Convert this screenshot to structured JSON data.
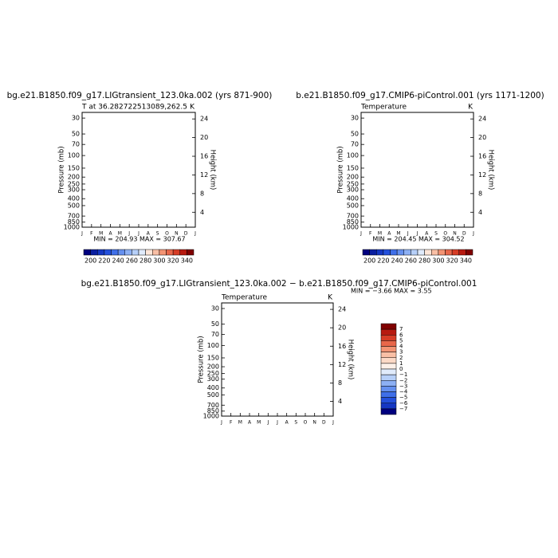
{
  "chart_data": [
    {
      "type": "contour",
      "title": "bg.e21.B1850.f09_g17.LIGtransient_123.0ka.002 (yrs 871-900)",
      "subtitle": "T at 36.282722513089,262.5",
      "units": "K",
      "ylabel": "Pressure (mb)",
      "y2label": "Height (km)",
      "categories": [
        "J",
        "F",
        "M",
        "A",
        "M",
        "J",
        "J",
        "A",
        "S",
        "O",
        "N",
        "D",
        "J"
      ],
      "ylim": [
        1000,
        25
      ],
      "log_scale_y": true,
      "yticks": [
        30,
        50,
        70,
        100,
        150,
        200,
        250,
        300,
        400,
        500,
        700,
        850,
        1000
      ],
      "y2lim": [
        0.8,
        25.4
      ],
      "y2ticks": [
        24,
        20,
        16,
        12,
        8,
        4
      ],
      "min_max": "MIN = 204.93 MAX = 307.67",
      "colorbar": {
        "orientation": "horizontal",
        "labels": [
          200,
          220,
          240,
          260,
          280,
          300,
          320,
          340
        ],
        "colors": [
          "#00007f",
          "#0a1fa0",
          "#1537c3",
          "#2450dc",
          "#3f6fe8",
          "#6590ef",
          "#8db0f4",
          "#b6cff8",
          "#e0ebfb",
          "#fde6d8",
          "#f9bfa5",
          "#f39474",
          "#e8674a",
          "#d63c26",
          "#b71a10",
          "#800000"
        ]
      }
    },
    {
      "type": "contour",
      "title": "b.e21.B1850.f09_g17.CMIP6-piControl.001 (yrs 1171-1200)",
      "subtitle": "Temperature",
      "units": "K",
      "ylabel": "Pressure (mb)",
      "y2label": "Height (km)",
      "categories": [
        "J",
        "F",
        "M",
        "A",
        "M",
        "J",
        "J",
        "A",
        "S",
        "O",
        "N",
        "D",
        "J"
      ],
      "ylim": [
        1000,
        25
      ],
      "log_scale_y": true,
      "yticks": [
        30,
        50,
        70,
        100,
        150,
        200,
        250,
        300,
        400,
        500,
        700,
        850,
        1000
      ],
      "y2lim": [
        0.8,
        25.4
      ],
      "y2ticks": [
        24,
        20,
        16,
        12,
        8,
        4
      ],
      "min_max": "MIN = 204.45 MAX = 304.52",
      "colorbar": {
        "orientation": "horizontal",
        "labels": [
          200,
          220,
          240,
          260,
          280,
          300,
          320,
          340
        ],
        "colors": [
          "#00007f",
          "#0a1fa0",
          "#1537c3",
          "#2450dc",
          "#3f6fe8",
          "#6590ef",
          "#8db0f4",
          "#b6cff8",
          "#e0ebfb",
          "#fde6d8",
          "#f9bfa5",
          "#f39474",
          "#e8674a",
          "#d63c26",
          "#b71a10",
          "#800000"
        ]
      }
    },
    {
      "type": "contour",
      "title": "bg.e21.B1850.f09_g17.LIGtransient_123.0ka.002 − b.e21.B1850.f09_g17.CMIP6-piControl.001",
      "subtitle": "Temperature",
      "units": "K",
      "ylabel": "Pressure (mb)",
      "y2label": "Height (km)",
      "categories": [
        "J",
        "F",
        "M",
        "A",
        "M",
        "J",
        "J",
        "A",
        "S",
        "O",
        "N",
        "D",
        "J"
      ],
      "ylim": [
        1000,
        25
      ],
      "log_scale_y": true,
      "yticks": [
        30,
        50,
        70,
        100,
        150,
        200,
        250,
        300,
        400,
        500,
        700,
        850,
        1000
      ],
      "y2lim": [
        0.8,
        25.4
      ],
      "y2ticks": [
        24,
        20,
        16,
        12,
        8,
        4
      ],
      "min_max": "MIN =  −3.66 MAX =   3.55",
      "colorbar": {
        "orientation": "vertical",
        "labels": [
          7,
          6,
          5,
          4,
          3,
          2,
          1,
          0,
          {
            "value": -1,
            "label": "−1"
          },
          {
            "value": -2,
            "label": "−2"
          },
          {
            "value": -3,
            "label": "−3"
          },
          {
            "value": -4,
            "label": "−4"
          },
          {
            "value": -5,
            "label": "−5"
          },
          {
            "value": -6,
            "label": "−6"
          },
          {
            "value": -7,
            "label": "−7"
          }
        ],
        "colors": [
          "#800000",
          "#b71a10",
          "#d63c26",
          "#e8674a",
          "#f39474",
          "#f9bfa5",
          "#fcd9c6",
          "#fdf0e8",
          "#e0ebfb",
          "#b6cff8",
          "#8db0f4",
          "#6590ef",
          "#3f6fe8",
          "#2450dc",
          "#1537c3",
          "#00007f"
        ]
      }
    }
  ]
}
